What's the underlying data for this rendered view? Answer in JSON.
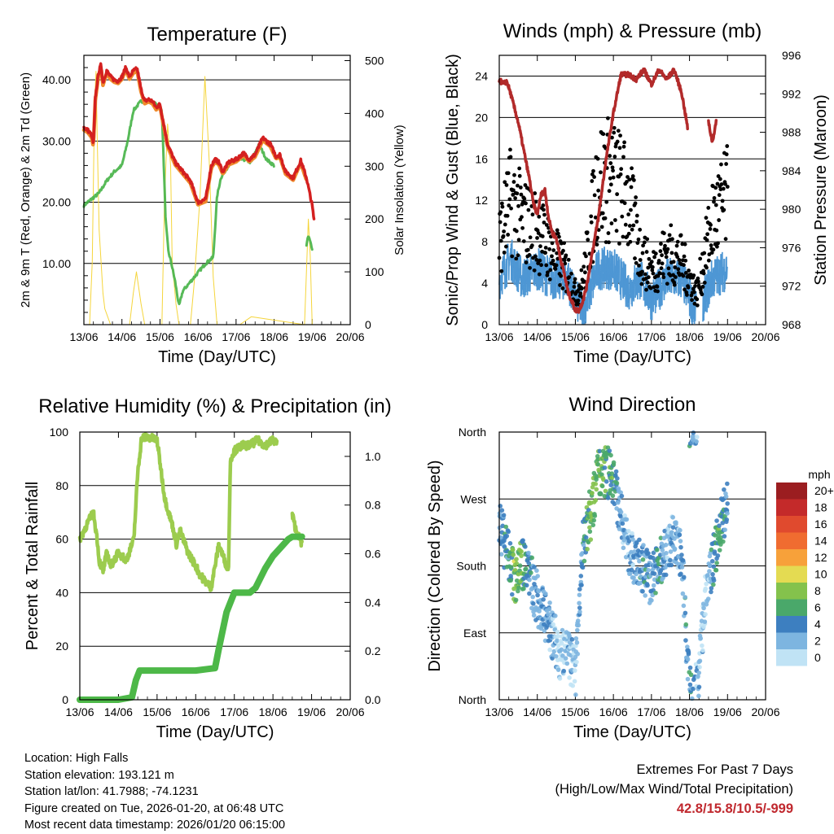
{
  "chart_data": [
    {
      "id": "temperature",
      "type": "line",
      "title": "Temperature (F)",
      "xlabel": "Time (Day/UTC)",
      "ylabel": "2m & 9m T (Red, Orange) & 2m Td (Green)",
      "y2label": "Solar Insolation (Yellow)",
      "xticks": [
        "13/06",
        "14/06",
        "15/06",
        "16/06",
        "17/06",
        "18/06",
        "19/06",
        "20/06"
      ],
      "ylim": [
        0,
        44
      ],
      "yticks": [
        10,
        20,
        30,
        40
      ],
      "ytick_labels": [
        "10.00",
        "20.00",
        "30.00",
        "40.00"
      ],
      "y2lim": [
        0,
        510
      ],
      "y2ticks": [
        "0",
        "100",
        "200",
        "300",
        "400",
        "500"
      ],
      "series": [
        {
          "name": "2m T",
          "color": "#d42020",
          "x": [
            0,
            0.1,
            0.2,
            0.25,
            0.3,
            0.38,
            0.45,
            0.5,
            0.6,
            0.7,
            0.8,
            0.9,
            1.0,
            1.1,
            1.2,
            1.3,
            1.4,
            1.45,
            1.5,
            1.6,
            1.7,
            1.8,
            1.9,
            2.0,
            2.2,
            2.4,
            2.6,
            2.8,
            3.0,
            3.2,
            3.35,
            3.45,
            3.55,
            3.65,
            3.8,
            4.0,
            4.2,
            4.35,
            4.5,
            4.7,
            4.9,
            5.05,
            5.15,
            5.3,
            5.5,
            5.7,
            5.85,
            6.0,
            6.05
          ],
          "values": [
            32.2,
            31.8,
            31,
            29.5,
            37,
            41,
            42.5,
            39.5,
            41.5,
            40.5,
            40,
            39.8,
            40.5,
            42,
            40.5,
            41.5,
            41.8,
            40.2,
            38.5,
            36.5,
            36.8,
            36.5,
            35.5,
            36,
            29.5,
            26.5,
            25,
            23.5,
            20,
            20.5,
            26,
            27,
            26.5,
            25,
            26.5,
            27,
            28,
            27,
            27.8,
            30.5,
            29.5,
            27.5,
            27.8,
            25,
            24,
            26.8,
            24,
            19.5,
            17
          ]
        },
        {
          "name": "9m T",
          "color": "#ef8a2c",
          "x": [
            1.4,
            1.9,
            2.6,
            3.0,
            4.2,
            5.0
          ],
          "values": [
            41.5,
            35.8,
            25.3,
            20.6,
            28.3,
            27.3
          ]
        },
        {
          "name": "2m Td",
          "color": "#45b246",
          "x": [
            0,
            0.2,
            0.4,
            0.6,
            0.8,
            1.0,
            1.15,
            1.3,
            1.5,
            1.7,
            1.9,
            2.05,
            2.15,
            2.22,
            2.3,
            2.4,
            2.5,
            2.6,
            2.8,
            3.0,
            3.2,
            3.4,
            3.5,
            3.6,
            3.8,
            4.0,
            4.2,
            4.4,
            4.6,
            4.8,
            5.0
          ],
          "values": [
            19.5,
            20.5,
            21.5,
            23.5,
            25,
            26,
            30,
            35,
            36.5,
            36.5,
            36,
            35,
            17,
            12,
            10,
            7,
            3,
            5.5,
            7,
            8.5,
            10,
            11,
            21,
            24,
            26,
            27,
            27,
            26.5,
            29.5,
            27,
            26
          ]
        },
        {
          "name": "2m Td (late)",
          "color": "#45b246",
          "x": [
            5.85,
            5.9,
            6.0
          ],
          "values": [
            13,
            14.5,
            12.5
          ]
        },
        {
          "name": "Solar Insolation",
          "axis": "y2",
          "color": "#f5d53c",
          "x": [
            0.15,
            0.22,
            0.28,
            0.32,
            0.35,
            0.4,
            0.5,
            0.55,
            0.7,
            1.2,
            1.3,
            1.38,
            1.5,
            1.6,
            2.05,
            2.12,
            2.2,
            2.28,
            2.32,
            2.42,
            2.5,
            2.8,
            2.9,
            3.05,
            3.18,
            3.3,
            3.4,
            3.5,
            4.1,
            4.4,
            5.8,
            5.9,
            5.95,
            6.0
          ],
          "values": [
            0,
            120,
            420,
            480,
            360,
            180,
            60,
            30,
            0,
            0,
            60,
            100,
            40,
            0,
            0,
            240,
            380,
            300,
            120,
            40,
            0,
            0,
            80,
            240,
            470,
            300,
            90,
            0,
            0,
            15,
            0,
            200,
            130,
            0
          ]
        }
      ]
    },
    {
      "id": "winds",
      "type": "scatter",
      "title": "Winds (mph) & Pressure (mb)",
      "xlabel": "Time (Day/UTC)",
      "ylabel": "Sonic/Prop Wind & Gust (Blue, Black)",
      "y2label": "Station Pressure (Maroon)",
      "xticks": [
        "13/06",
        "14/06",
        "15/06",
        "16/06",
        "17/06",
        "18/06",
        "19/06",
        "20/06"
      ],
      "ylim": [
        0,
        26
      ],
      "yticks": [
        "0",
        "4",
        "8",
        "12",
        "16",
        "20",
        "24"
      ],
      "y2lim": [
        968,
        996
      ],
      "y2ticks": [
        "968",
        "972",
        "976",
        "980",
        "984",
        "988",
        "992",
        "996"
      ],
      "series": [
        {
          "name": "Wind",
          "color": "#4e97d4",
          "x": [
            0,
            0.3,
            0.6,
            1.0,
            1.4,
            1.8,
            2.0,
            2.2,
            2.6,
            3.0,
            3.4,
            3.7,
            4.0,
            4.4,
            4.8,
            5.2,
            5.6,
            6.0
          ],
          "values": [
            4,
            6,
            4,
            5,
            4,
            4,
            2,
            1,
            5,
            5,
            3,
            4,
            2,
            4,
            4,
            0.5,
            4,
            5
          ]
        },
        {
          "name": "Gust",
          "color": "#000000",
          "x": [
            0,
            0.3,
            0.6,
            1.0,
            1.4,
            1.8,
            2.0,
            2.2,
            2.6,
            3.0,
            3.4,
            3.7,
            4.0,
            4.4,
            4.8,
            5.2,
            5.6,
            6.0
          ],
          "values": [
            8,
            12,
            10,
            9,
            7,
            5,
            3,
            4,
            14,
            14,
            12,
            7,
            5,
            7,
            6,
            3,
            10,
            12
          ]
        },
        {
          "name": "Pressure",
          "axis": "y2",
          "color": "#b22a2a",
          "x": [
            0,
            0.1,
            0.2,
            0.3,
            0.5,
            0.7,
            0.8,
            0.9,
            1.0,
            1.1,
            1.2,
            1.3,
            1.4,
            1.5,
            1.6,
            1.7,
            1.8,
            1.9,
            2.0,
            2.1,
            2.2,
            2.3,
            2.4,
            2.6,
            2.8,
            3.0,
            3.2,
            3.4,
            3.6,
            3.8,
            4.0,
            4.2,
            4.4,
            4.6,
            4.8,
            4.95
          ],
          "values": [
            993.5,
            993,
            993.3,
            992,
            989,
            985,
            983,
            980.5,
            979.5,
            981.5,
            982,
            979,
            977.5,
            977,
            975,
            973.5,
            971.5,
            970.5,
            969.5,
            969.5,
            970.5,
            972,
            974.5,
            979,
            985,
            990,
            994,
            994,
            993.5,
            994.5,
            993,
            994.5,
            993.5,
            994.5,
            992,
            988.5
          ]
        },
        {
          "name": "Pressure (late)",
          "axis": "y2",
          "color": "#b22a2a",
          "x": [
            5.5,
            5.6,
            5.7
          ],
          "values": [
            989,
            987,
            989
          ]
        }
      ]
    },
    {
      "id": "humidity",
      "type": "line",
      "title": "Relative Humidity (%) & Precipitation (in)",
      "xlabel": "Time (Day/UTC)",
      "ylabel": "Percent & Total Rainfall",
      "xticks": [
        "13/06",
        "14/06",
        "15/06",
        "16/06",
        "17/06",
        "18/06",
        "19/06",
        "20/06"
      ],
      "ylim": [
        0,
        100
      ],
      "yticks": [
        "0",
        "20",
        "40",
        "60",
        "80",
        "100"
      ],
      "y2lim": [
        0,
        1.1
      ],
      "y2ticks": [
        "0.0",
        "0.2",
        "0.4",
        "0.6",
        "0.8",
        "1.0"
      ],
      "series": [
        {
          "name": "Relative Humidity",
          "color": "#9ccc4e",
          "x": [
            0,
            0.2,
            0.35,
            0.45,
            0.5,
            0.6,
            0.7,
            0.8,
            1.0,
            1.2,
            1.4,
            1.5,
            1.6,
            1.8,
            2.0,
            2.2,
            2.4,
            2.5,
            2.6,
            2.8,
            3.0,
            3.1,
            3.2,
            3.4,
            3.6,
            3.8,
            3.85,
            3.9,
            4.0,
            4.2,
            4.4,
            4.6,
            4.8,
            5.0,
            5.1
          ],
          "values": [
            60,
            66,
            70,
            60,
            52,
            48,
            55,
            50,
            55,
            52,
            60,
            85,
            98,
            98,
            97,
            75,
            65,
            58,
            63,
            55,
            50,
            47,
            45,
            42,
            58,
            50,
            50,
            90,
            93,
            95,
            95,
            97,
            95,
            97,
            96
          ]
        },
        {
          "name": "Relative Humidity (late)",
          "color": "#9ccc4e",
          "x": [
            5.5,
            5.6,
            5.7,
            5.75
          ],
          "values": [
            69,
            63,
            60,
            58
          ]
        },
        {
          "name": "Total Precipitation",
          "axis": "y2",
          "color": "#4db848",
          "x": [
            0,
            1.0,
            1.35,
            1.45,
            1.55,
            3.0,
            3.5,
            3.6,
            3.8,
            4.0,
            4.4,
            4.55,
            4.8,
            5.0,
            5.4,
            5.5,
            5.6,
            5.75
          ],
          "values": [
            0,
            0,
            0.01,
            0.08,
            0.12,
            0.12,
            0.13,
            0.21,
            0.36,
            0.44,
            0.44,
            0.46,
            0.54,
            0.59,
            0.66,
            0.67,
            0.67,
            0.67
          ]
        }
      ]
    },
    {
      "id": "direction",
      "type": "scatter",
      "title": "Wind Direction",
      "xlabel": "Time (Day/UTC)",
      "ylabel": "Direction (Colored By Speed)",
      "xticks": [
        "13/06",
        "14/06",
        "15/06",
        "16/06",
        "17/06",
        "18/06",
        "19/06",
        "20/06"
      ],
      "ylim": [
        0,
        360
      ],
      "yticks": [
        "North",
        "East",
        "South",
        "West",
        "North"
      ],
      "colorbar": {
        "title": "mph",
        "labels": [
          "20+",
          "18",
          "16",
          "14",
          "12",
          "10",
          "8",
          "6",
          "4",
          "2",
          "0"
        ],
        "colors": [
          "#9b1d20",
          "#c42a2a",
          "#e04a2e",
          "#f06c30",
          "#f7a13a",
          "#e4db52",
          "#84c24c",
          "#4aa86a",
          "#3d7fc0",
          "#7db5e0",
          "#c0e3f5"
        ]
      },
      "series": [
        {
          "name": "Direction",
          "x": [
            0,
            0.2,
            0.3,
            0.4,
            0.5,
            0.7,
            0.9,
            1.2,
            1.4,
            1.6,
            1.8,
            2.0,
            2.2,
            2.4,
            2.6,
            2.8,
            3.0,
            3.2,
            3.4,
            3.6,
            3.8,
            4.0,
            4.2,
            4.4,
            4.6,
            4.8,
            5.0,
            5.2,
            5.4,
            5.6,
            5.8,
            6.0
          ],
          "values": [
            240,
            200,
            180,
            160,
            175,
            185,
            150,
            110,
            90,
            60,
            60,
            40,
            210,
            250,
            300,
            310,
            295,
            250,
            200,
            185,
            175,
            160,
            180,
            200,
            220,
            190,
            15,
            15,
            130,
            180,
            230,
            270
          ],
          "speeds": [
            4,
            5,
            6,
            9,
            8,
            6,
            4,
            4,
            3,
            2,
            3,
            2,
            5,
            8,
            8,
            7,
            6,
            4,
            3,
            4,
            5,
            4,
            5,
            3,
            3,
            4,
            5,
            3,
            2,
            5,
            7,
            4
          ]
        }
      ]
    }
  ],
  "info": {
    "location": "Location: High Falls",
    "elevation": "Station elevation: 193.121 m",
    "latlon": "Station lat/lon: 41.7988; -74.1231",
    "created": "Figure created on Tue, 2026-01-20, at 06:48 UTC",
    "recent": "Most recent data timestamp: 2026/01/20 06:15:00"
  },
  "extremes": {
    "title": "Extremes For Past 7 Days",
    "subtitle": "(High/Low/Max Wind/Total Precipitation)",
    "values": "42.8/15.8/10.5/-999"
  }
}
